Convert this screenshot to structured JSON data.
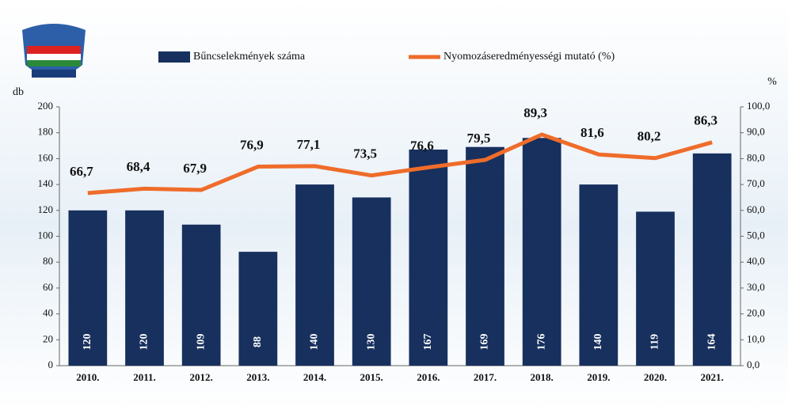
{
  "chart_data": {
    "type": "bar",
    "categories": [
      "2010.",
      "2011.",
      "2012.",
      "2013.",
      "2014.",
      "2015.",
      "2016.",
      "2017.",
      "2018.",
      "2019.",
      "2020.",
      "2021."
    ],
    "series": [
      {
        "name": "Bűncselekmények száma",
        "type": "bar",
        "color": "#17305e",
        "values": [
          120,
          120,
          109,
          88,
          140,
          130,
          167,
          169,
          176,
          140,
          119,
          164
        ]
      },
      {
        "name": "Nyomozáseredményességi mutató (%)",
        "type": "line",
        "axis": "y2",
        "color": "#ef6c2a",
        "values": [
          66.7,
          68.4,
          67.9,
          76.9,
          77.1,
          73.5,
          76.6,
          79.5,
          89.3,
          81.6,
          80.2,
          86.3
        ],
        "value_labels": [
          "66,7",
          "68,4",
          "67,9",
          "76,9",
          "77,1",
          "73,5",
          "76,6",
          "79,5",
          "89,3",
          "81,6",
          "80,2",
          "86,3"
        ]
      }
    ],
    "y_label": "db",
    "y2_label": "%",
    "ylim": [
      0,
      200
    ],
    "yticks": [
      0,
      20,
      40,
      60,
      80,
      100,
      120,
      140,
      160,
      180,
      200
    ],
    "y2lim": [
      0,
      100
    ],
    "y2ticks": [
      {
        "value": 0,
        "label": "0,0"
      },
      {
        "value": 10,
        "label": "10,0"
      },
      {
        "value": 20,
        "label": "20,0"
      },
      {
        "value": 30,
        "label": "30,0"
      },
      {
        "value": 40,
        "label": "40,0"
      },
      {
        "value": 50,
        "label": "50,0"
      },
      {
        "value": 60,
        "label": "60,0"
      },
      {
        "value": 70,
        "label": "70,0"
      },
      {
        "value": 80,
        "label": "80,0"
      },
      {
        "value": 90,
        "label": "90,0"
      },
      {
        "value": 100,
        "label": "100,0"
      }
    ]
  }
}
